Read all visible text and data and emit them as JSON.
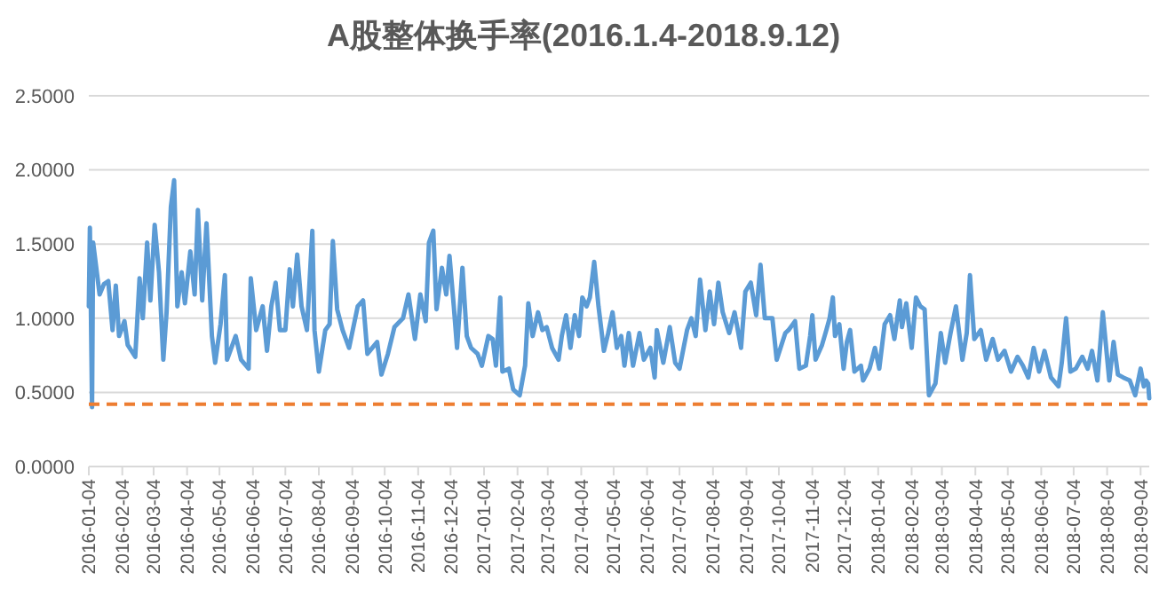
{
  "chart_data": {
    "type": "line",
    "title": "A股整体换手率(2016.1.4-2018.9.12)",
    "x": [
      "2016-01-04",
      "2016-01-05",
      "2016-01-07",
      "2016-01-08",
      "2016-01-14",
      "2016-01-18",
      "2016-01-22",
      "2016-01-26",
      "2016-01-29",
      "2016-02-01",
      "2016-02-06",
      "2016-02-09",
      "2016-02-16",
      "2016-02-20",
      "2016-02-23",
      "2016-02-27",
      "2016-03-01",
      "2016-03-05",
      "2016-03-09",
      "2016-03-13",
      "2016-03-16",
      "2016-03-20",
      "2016-03-23",
      "2016-03-26",
      "2016-03-30",
      "2016-04-02",
      "2016-04-07",
      "2016-04-11",
      "2016-04-14",
      "2016-04-18",
      "2016-04-22",
      "2016-04-27",
      "2016-04-30",
      "2016-05-05",
      "2016-05-09",
      "2016-05-11",
      "2016-05-19",
      "2016-05-24",
      "2016-05-31",
      "2016-06-02",
      "2016-06-07",
      "2016-06-13",
      "2016-06-17",
      "2016-06-21",
      "2016-06-25",
      "2016-06-29",
      "2016-07-04",
      "2016-07-08",
      "2016-07-11",
      "2016-07-15",
      "2016-07-19",
      "2016-07-24",
      "2016-07-29",
      "2016-07-31",
      "2016-08-04",
      "2016-08-10",
      "2016-08-14",
      "2016-08-17",
      "2016-08-21",
      "2016-08-26",
      "2016-09-01",
      "2016-09-09",
      "2016-09-14",
      "2016-09-18",
      "2016-09-27",
      "2016-10-01",
      "2016-10-07",
      "2016-10-13",
      "2016-10-21",
      "2016-10-26",
      "2016-11-01",
      "2016-11-06",
      "2016-11-11",
      "2016-11-14",
      "2016-11-18",
      "2016-11-21",
      "2016-11-26",
      "2016-11-30",
      "2016-12-03",
      "2016-12-07",
      "2016-12-10",
      "2016-12-15",
      "2016-12-19",
      "2016-12-23",
      "2016-12-29",
      "2017-01-02",
      "2017-01-08",
      "2017-01-12",
      "2017-01-15",
      "2017-01-19",
      "2017-01-21",
      "2017-01-27",
      "2017-01-31",
      "2017-02-06",
      "2017-02-11",
      "2017-02-14",
      "2017-02-18",
      "2017-02-23",
      "2017-02-27",
      "2017-03-03",
      "2017-03-08",
      "2017-03-14",
      "2017-03-17",
      "2017-03-21",
      "2017-03-25",
      "2017-03-29",
      "2017-04-02",
      "2017-04-05",
      "2017-04-09",
      "2017-04-12",
      "2017-04-16",
      "2017-04-20",
      "2017-04-25",
      "2017-04-29",
      "2017-05-03",
      "2017-05-07",
      "2017-05-11",
      "2017-05-14",
      "2017-05-18",
      "2017-05-22",
      "2017-05-28",
      "2017-06-01",
      "2017-06-07",
      "2017-06-11",
      "2017-06-13",
      "2017-06-19",
      "2017-06-25",
      "2017-06-30",
      "2017-07-04",
      "2017-07-11",
      "2017-07-15",
      "2017-07-19",
      "2017-07-23",
      "2017-07-28",
      "2017-08-01",
      "2017-08-05",
      "2017-08-09",
      "2017-08-13",
      "2017-08-19",
      "2017-08-24",
      "2017-08-30",
      "2017-09-03",
      "2017-09-08",
      "2017-09-13",
      "2017-09-17",
      "2017-09-21",
      "2017-09-28",
      "2017-10-02",
      "2017-10-10",
      "2017-10-13",
      "2017-10-19",
      "2017-10-23",
      "2017-10-29",
      "2017-11-02",
      "2017-11-04",
      "2017-11-07",
      "2017-11-13",
      "2017-11-17",
      "2017-11-20",
      "2017-11-23",
      "2017-11-25",
      "2017-11-29",
      "2017-12-03",
      "2017-12-06",
      "2017-12-09",
      "2017-12-13",
      "2017-12-19",
      "2017-12-21",
      "2017-12-27",
      "2018-01-01",
      "2018-01-05",
      "2018-01-10",
      "2018-01-15",
      "2018-01-19",
      "2018-01-24",
      "2018-01-26",
      "2018-01-30",
      "2018-02-04",
      "2018-02-08",
      "2018-02-12",
      "2018-02-16",
      "2018-02-20",
      "2018-02-26",
      "2018-03-03",
      "2018-03-07",
      "2018-03-12",
      "2018-03-17",
      "2018-03-23",
      "2018-03-27",
      "2018-03-30",
      "2018-04-03",
      "2018-04-09",
      "2018-04-14",
      "2018-04-20",
      "2018-04-25",
      "2018-05-01",
      "2018-05-07",
      "2018-05-13",
      "2018-05-18",
      "2018-05-23",
      "2018-05-28",
      "2018-06-02",
      "2018-06-07",
      "2018-06-13",
      "2018-06-20",
      "2018-06-23",
      "2018-06-27",
      "2018-07-01",
      "2018-07-06",
      "2018-07-12",
      "2018-07-17",
      "2018-07-21",
      "2018-07-26",
      "2018-07-31",
      "2018-08-06",
      "2018-08-10",
      "2018-08-14",
      "2018-08-19",
      "2018-08-25",
      "2018-08-30",
      "2018-09-04",
      "2018-09-07",
      "2018-09-09",
      "2018-09-11",
      "2018-09-12"
    ],
    "series": [
      {
        "color": "#5b9bd5",
        "values": [
          1.08,
          1.61,
          0.4,
          1.51,
          1.16,
          1.23,
          1.25,
          0.92,
          1.22,
          0.88,
          0.98,
          0.82,
          0.74,
          1.27,
          1.0,
          1.51,
          1.12,
          1.63,
          1.31,
          0.72,
          1.04,
          1.75,
          1.93,
          1.08,
          1.31,
          1.1,
          1.45,
          1.16,
          1.73,
          1.12,
          1.64,
          0.88,
          0.7,
          0.96,
          1.29,
          0.72,
          0.88,
          0.72,
          0.66,
          1.27,
          0.92,
          1.08,
          0.78,
          1.08,
          1.24,
          0.92,
          0.92,
          1.33,
          1.08,
          1.43,
          1.08,
          0.92,
          1.59,
          0.92,
          0.64,
          0.92,
          0.96,
          1.52,
          1.06,
          0.92,
          0.8,
          1.08,
          1.12,
          0.76,
          0.84,
          0.62,
          0.76,
          0.94,
          1.0,
          1.16,
          0.86,
          1.16,
          0.98,
          1.51,
          1.59,
          1.06,
          1.34,
          1.16,
          1.42,
          1.08,
          0.8,
          1.34,
          0.88,
          0.8,
          0.76,
          0.68,
          0.88,
          0.86,
          0.68,
          1.14,
          0.64,
          0.66,
          0.52,
          0.48,
          0.68,
          1.1,
          0.88,
          1.04,
          0.92,
          0.94,
          0.8,
          0.72,
          0.88,
          1.02,
          0.8,
          1.02,
          0.88,
          1.14,
          1.08,
          1.14,
          1.38,
          1.08,
          0.78,
          0.9,
          1.04,
          0.8,
          0.88,
          0.68,
          0.9,
          0.68,
          0.9,
          0.72,
          0.8,
          0.6,
          0.92,
          0.7,
          0.94,
          0.7,
          0.66,
          0.92,
          1.0,
          0.88,
          1.26,
          0.92,
          1.18,
          0.96,
          1.24,
          1.04,
          0.9,
          1.04,
          0.8,
          1.18,
          1.24,
          1.02,
          1.36,
          1.0,
          1.0,
          0.72,
          0.9,
          0.92,
          0.98,
          0.66,
          0.68,
          0.88,
          1.02,
          0.72,
          0.82,
          0.92,
          1.0,
          1.14,
          0.88,
          0.96,
          0.66,
          0.84,
          0.92,
          0.64,
          0.68,
          0.58,
          0.66,
          0.8,
          0.66,
          0.96,
          1.02,
          0.86,
          1.12,
          0.94,
          1.1,
          0.8,
          1.14,
          1.08,
          1.06,
          0.48,
          0.56,
          0.9,
          0.7,
          0.9,
          1.08,
          0.72,
          0.9,
          1.29,
          0.86,
          0.92,
          0.72,
          0.86,
          0.72,
          0.78,
          0.64,
          0.74,
          0.68,
          0.6,
          0.8,
          0.64,
          0.78,
          0.6,
          0.54,
          0.7,
          1.0,
          0.64,
          0.66,
          0.74,
          0.66,
          0.78,
          0.58,
          1.04,
          0.58,
          0.84,
          0.62,
          0.6,
          0.58,
          0.48,
          0.66,
          0.54,
          0.58,
          0.56,
          0.46
        ]
      }
    ],
    "xlim": [
      "2016-01-04",
      "2018-09-12"
    ],
    "xticks": [
      "2016-01-04",
      "2016-02-04",
      "2016-03-04",
      "2016-04-04",
      "2016-05-04",
      "2016-06-04",
      "2016-07-04",
      "2016-08-04",
      "2016-09-04",
      "2016-10-04",
      "2016-11-04",
      "2016-12-04",
      "2017-01-04",
      "2017-02-04",
      "2017-03-04",
      "2017-04-04",
      "2017-05-04",
      "2017-06-04",
      "2017-07-04",
      "2017-08-04",
      "2017-09-04",
      "2017-10-04",
      "2017-11-04",
      "2017-12-04",
      "2018-01-04",
      "2018-02-04",
      "2018-03-04",
      "2018-04-04",
      "2018-05-04",
      "2018-06-04",
      "2018-07-04",
      "2018-08-04",
      "2018-09-04"
    ],
    "ylim": [
      0,
      2.5
    ],
    "yticks": [
      {
        "value": 0,
        "label": "0.0000"
      },
      {
        "value": 0.5,
        "label": "0.5000"
      },
      {
        "value": 1,
        "label": "1.0000"
      },
      {
        "value": 1.5,
        "label": "1.5000"
      },
      {
        "value": 2,
        "label": "2.0000"
      },
      {
        "value": 2.5,
        "label": "2.5000"
      }
    ],
    "grid": "y",
    "ref_lines": [
      {
        "axis": "y",
        "value": 0.42,
        "color": "#ed7d31",
        "line_style": "dashed"
      }
    ]
  }
}
